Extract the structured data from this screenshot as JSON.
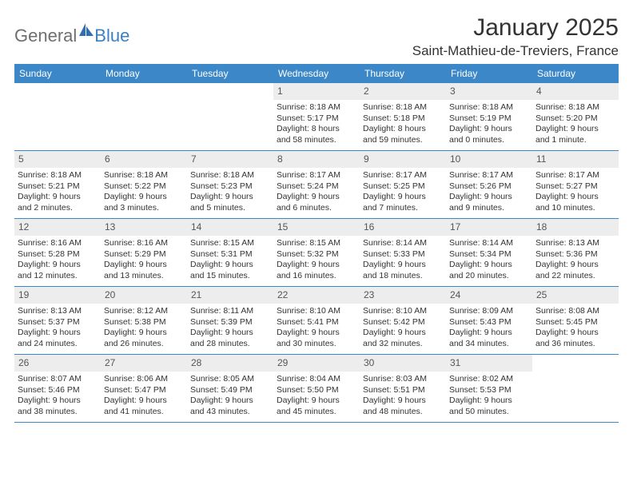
{
  "brand": {
    "part1": "General",
    "part2": "Blue"
  },
  "title": "January 2025",
  "location": "Saint-Mathieu-de-Treviers, France",
  "colors": {
    "header_bar": "#3b87c8",
    "day_num_bg": "#ededed",
    "text": "#333333",
    "logo_gray": "#6f6f6f",
    "logo_blue": "#3b7fc4"
  },
  "weekdays": [
    "Sunday",
    "Monday",
    "Tuesday",
    "Wednesday",
    "Thursday",
    "Friday",
    "Saturday"
  ],
  "weeks": [
    [
      {
        "num": "",
        "lines": [
          "",
          "",
          "",
          ""
        ]
      },
      {
        "num": "",
        "lines": [
          "",
          "",
          "",
          ""
        ]
      },
      {
        "num": "",
        "lines": [
          "",
          "",
          "",
          ""
        ]
      },
      {
        "num": "1",
        "lines": [
          "Sunrise: 8:18 AM",
          "Sunset: 5:17 PM",
          "Daylight: 8 hours",
          "and 58 minutes."
        ]
      },
      {
        "num": "2",
        "lines": [
          "Sunrise: 8:18 AM",
          "Sunset: 5:18 PM",
          "Daylight: 8 hours",
          "and 59 minutes."
        ]
      },
      {
        "num": "3",
        "lines": [
          "Sunrise: 8:18 AM",
          "Sunset: 5:19 PM",
          "Daylight: 9 hours",
          "and 0 minutes."
        ]
      },
      {
        "num": "4",
        "lines": [
          "Sunrise: 8:18 AM",
          "Sunset: 5:20 PM",
          "Daylight: 9 hours",
          "and 1 minute."
        ]
      }
    ],
    [
      {
        "num": "5",
        "lines": [
          "Sunrise: 8:18 AM",
          "Sunset: 5:21 PM",
          "Daylight: 9 hours",
          "and 2 minutes."
        ]
      },
      {
        "num": "6",
        "lines": [
          "Sunrise: 8:18 AM",
          "Sunset: 5:22 PM",
          "Daylight: 9 hours",
          "and 3 minutes."
        ]
      },
      {
        "num": "7",
        "lines": [
          "Sunrise: 8:18 AM",
          "Sunset: 5:23 PM",
          "Daylight: 9 hours",
          "and 5 minutes."
        ]
      },
      {
        "num": "8",
        "lines": [
          "Sunrise: 8:17 AM",
          "Sunset: 5:24 PM",
          "Daylight: 9 hours",
          "and 6 minutes."
        ]
      },
      {
        "num": "9",
        "lines": [
          "Sunrise: 8:17 AM",
          "Sunset: 5:25 PM",
          "Daylight: 9 hours",
          "and 7 minutes."
        ]
      },
      {
        "num": "10",
        "lines": [
          "Sunrise: 8:17 AM",
          "Sunset: 5:26 PM",
          "Daylight: 9 hours",
          "and 9 minutes."
        ]
      },
      {
        "num": "11",
        "lines": [
          "Sunrise: 8:17 AM",
          "Sunset: 5:27 PM",
          "Daylight: 9 hours",
          "and 10 minutes."
        ]
      }
    ],
    [
      {
        "num": "12",
        "lines": [
          "Sunrise: 8:16 AM",
          "Sunset: 5:28 PM",
          "Daylight: 9 hours",
          "and 12 minutes."
        ]
      },
      {
        "num": "13",
        "lines": [
          "Sunrise: 8:16 AM",
          "Sunset: 5:29 PM",
          "Daylight: 9 hours",
          "and 13 minutes."
        ]
      },
      {
        "num": "14",
        "lines": [
          "Sunrise: 8:15 AM",
          "Sunset: 5:31 PM",
          "Daylight: 9 hours",
          "and 15 minutes."
        ]
      },
      {
        "num": "15",
        "lines": [
          "Sunrise: 8:15 AM",
          "Sunset: 5:32 PM",
          "Daylight: 9 hours",
          "and 16 minutes."
        ]
      },
      {
        "num": "16",
        "lines": [
          "Sunrise: 8:14 AM",
          "Sunset: 5:33 PM",
          "Daylight: 9 hours",
          "and 18 minutes."
        ]
      },
      {
        "num": "17",
        "lines": [
          "Sunrise: 8:14 AM",
          "Sunset: 5:34 PM",
          "Daylight: 9 hours",
          "and 20 minutes."
        ]
      },
      {
        "num": "18",
        "lines": [
          "Sunrise: 8:13 AM",
          "Sunset: 5:36 PM",
          "Daylight: 9 hours",
          "and 22 minutes."
        ]
      }
    ],
    [
      {
        "num": "19",
        "lines": [
          "Sunrise: 8:13 AM",
          "Sunset: 5:37 PM",
          "Daylight: 9 hours",
          "and 24 minutes."
        ]
      },
      {
        "num": "20",
        "lines": [
          "Sunrise: 8:12 AM",
          "Sunset: 5:38 PM",
          "Daylight: 9 hours",
          "and 26 minutes."
        ]
      },
      {
        "num": "21",
        "lines": [
          "Sunrise: 8:11 AM",
          "Sunset: 5:39 PM",
          "Daylight: 9 hours",
          "and 28 minutes."
        ]
      },
      {
        "num": "22",
        "lines": [
          "Sunrise: 8:10 AM",
          "Sunset: 5:41 PM",
          "Daylight: 9 hours",
          "and 30 minutes."
        ]
      },
      {
        "num": "23",
        "lines": [
          "Sunrise: 8:10 AM",
          "Sunset: 5:42 PM",
          "Daylight: 9 hours",
          "and 32 minutes."
        ]
      },
      {
        "num": "24",
        "lines": [
          "Sunrise: 8:09 AM",
          "Sunset: 5:43 PM",
          "Daylight: 9 hours",
          "and 34 minutes."
        ]
      },
      {
        "num": "25",
        "lines": [
          "Sunrise: 8:08 AM",
          "Sunset: 5:45 PM",
          "Daylight: 9 hours",
          "and 36 minutes."
        ]
      }
    ],
    [
      {
        "num": "26",
        "lines": [
          "Sunrise: 8:07 AM",
          "Sunset: 5:46 PM",
          "Daylight: 9 hours",
          "and 38 minutes."
        ]
      },
      {
        "num": "27",
        "lines": [
          "Sunrise: 8:06 AM",
          "Sunset: 5:47 PM",
          "Daylight: 9 hours",
          "and 41 minutes."
        ]
      },
      {
        "num": "28",
        "lines": [
          "Sunrise: 8:05 AM",
          "Sunset: 5:49 PM",
          "Daylight: 9 hours",
          "and 43 minutes."
        ]
      },
      {
        "num": "29",
        "lines": [
          "Sunrise: 8:04 AM",
          "Sunset: 5:50 PM",
          "Daylight: 9 hours",
          "and 45 minutes."
        ]
      },
      {
        "num": "30",
        "lines": [
          "Sunrise: 8:03 AM",
          "Sunset: 5:51 PM",
          "Daylight: 9 hours",
          "and 48 minutes."
        ]
      },
      {
        "num": "31",
        "lines": [
          "Sunrise: 8:02 AM",
          "Sunset: 5:53 PM",
          "Daylight: 9 hours",
          "and 50 minutes."
        ]
      },
      {
        "num": "",
        "lines": [
          "",
          "",
          "",
          ""
        ]
      }
    ]
  ]
}
